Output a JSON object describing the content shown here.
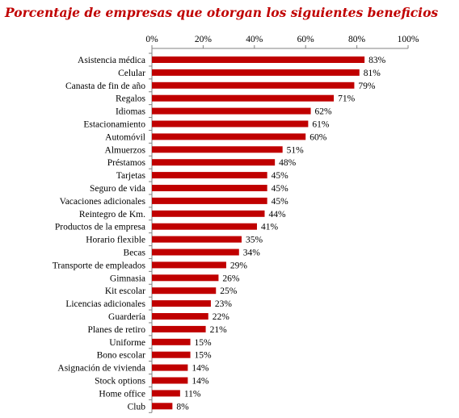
{
  "chart_data": {
    "type": "bar",
    "orientation": "horizontal",
    "title": "Porcentaje de empresas que otorgan los siguientes beneficios",
    "xlim": [
      0,
      100
    ],
    "x_ticks": [
      "0%",
      "20%",
      "40%",
      "60%",
      "80%",
      "100%"
    ],
    "x_tick_values": [
      0,
      20,
      40,
      60,
      80,
      100
    ],
    "axis_position": "top",
    "grid": false,
    "bar_color": "#c00000",
    "categories": [
      "Asistencia médica",
      "Celular",
      "Canasta de fin de año",
      "Regalos",
      "Idiomas",
      "Estacionamiento",
      "Automóvil",
      "Almuerzos",
      "Préstamos",
      "Tarjetas",
      "Seguro de vida",
      "Vacaciones adicionales",
      "Reintegro de Km.",
      "Productos de la empresa",
      "Horario flexible",
      "Becas",
      "Transporte de empleados",
      "Gimnasia",
      "Kit escolar",
      "Licencias adicionales",
      "Guardería",
      "Planes de retiro",
      "Uniforme",
      "Bono escolar",
      "Asignación de vivienda",
      "Stock options",
      "Home office",
      "Club"
    ],
    "values": [
      83,
      81,
      79,
      71,
      62,
      61,
      60,
      51,
      48,
      45,
      45,
      45,
      44,
      41,
      35,
      34,
      29,
      26,
      25,
      23,
      22,
      21,
      15,
      15,
      14,
      14,
      11,
      8
    ],
    "value_labels": [
      "83%",
      "81%",
      "79%",
      "71%",
      "62%",
      "61%",
      "60%",
      "51%",
      "48%",
      "45%",
      "45%",
      "45%",
      "44%",
      "41%",
      "35%",
      "34%",
      "29%",
      "26%",
      "25%",
      "23%",
      "22%",
      "21%",
      "15%",
      "15%",
      "14%",
      "14%",
      "11%",
      "8%"
    ]
  }
}
